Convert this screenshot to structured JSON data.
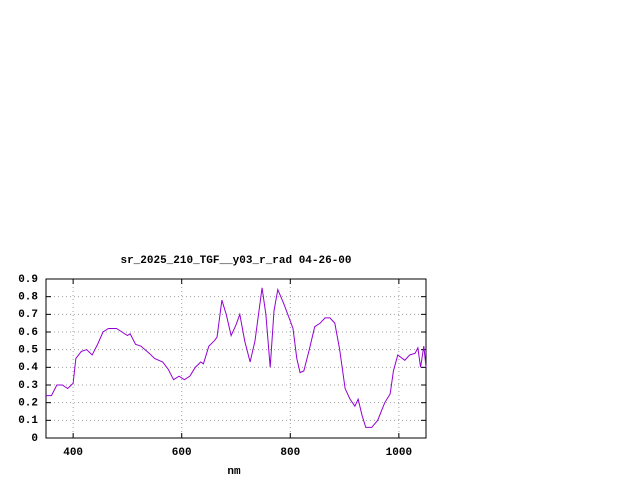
{
  "chart_data": {
    "type": "line",
    "title": "sr_2025_210_TGF__y03_r_rad 04-26-00",
    "xlabel": "nm",
    "x": [
      350,
      360,
      370,
      380,
      390,
      400,
      405,
      415,
      425,
      435,
      445,
      455,
      465,
      480,
      490,
      500,
      505,
      515,
      525,
      540,
      550,
      565,
      575,
      585,
      595,
      605,
      615,
      625,
      635,
      640,
      650,
      660,
      665,
      674,
      682,
      691,
      700,
      707,
      716,
      726,
      735,
      748,
      755,
      763,
      770,
      777,
      788,
      799,
      805,
      812,
      818,
      825,
      835,
      845,
      855,
      864,
      873,
      882,
      891,
      901,
      910,
      919,
      925,
      932,
      939,
      950,
      961,
      974,
      984,
      990,
      998,
      1011,
      1020,
      1030,
      1035,
      1040,
      1046,
      1050
    ],
    "series": [
      {
        "name": "sr",
        "color": "#9400d3",
        "values": [
          0.24,
          0.24,
          0.3,
          0.3,
          0.28,
          0.31,
          0.45,
          0.49,
          0.5,
          0.47,
          0.53,
          0.6,
          0.62,
          0.62,
          0.6,
          0.58,
          0.59,
          0.53,
          0.52,
          0.48,
          0.45,
          0.43,
          0.39,
          0.33,
          0.35,
          0.33,
          0.35,
          0.4,
          0.43,
          0.42,
          0.52,
          0.55,
          0.57,
          0.78,
          0.7,
          0.58,
          0.64,
          0.7,
          0.55,
          0.43,
          0.55,
          0.85,
          0.7,
          0.4,
          0.72,
          0.84,
          0.76,
          0.67,
          0.62,
          0.45,
          0.37,
          0.38,
          0.5,
          0.63,
          0.65,
          0.68,
          0.68,
          0.65,
          0.5,
          0.28,
          0.22,
          0.18,
          0.22,
          0.13,
          0.06,
          0.06,
          0.1,
          0.2,
          0.25,
          0.38,
          0.47,
          0.44,
          0.47,
          0.48,
          0.51,
          0.4,
          0.52,
          0.4
        ]
      }
    ],
    "xlim": [
      350,
      1050
    ],
    "xticks": [
      400,
      600,
      800,
      1000
    ],
    "ylim": [
      0,
      0.9
    ],
    "yticks": [
      0,
      0.1,
      0.2,
      0.3,
      0.4,
      0.5,
      0.6,
      0.7,
      0.8,
      0.9
    ],
    "grid": true
  }
}
